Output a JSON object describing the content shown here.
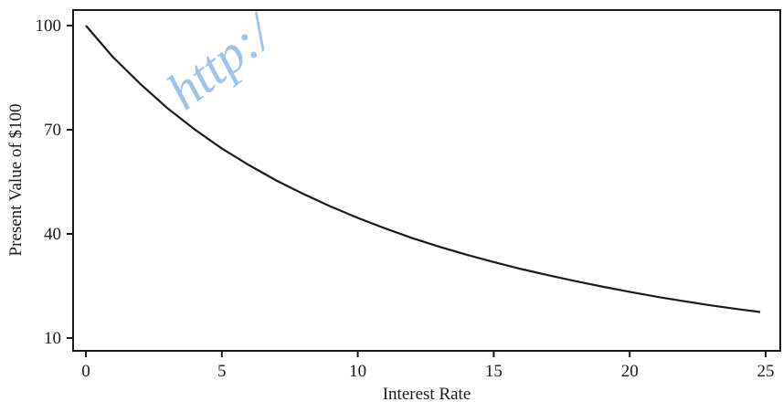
{
  "chart_data": {
    "type": "line",
    "xlabel": "Interest Rate",
    "ylabel": "Present Value of $100",
    "xlim": [
      0,
      25
    ],
    "ylim": [
      10,
      100
    ],
    "x_ticks": [
      0,
      5,
      10,
      15,
      20,
      25
    ],
    "y_ticks": [
      10,
      40,
      70,
      100
    ],
    "grid": false,
    "series": [
      {
        "x": [
          0,
          1,
          2,
          3,
          4,
          5,
          6,
          7,
          8,
          9,
          10,
          11,
          12,
          13,
          14,
          15,
          16,
          17,
          18,
          19,
          20,
          21,
          22,
          23,
          24,
          24.8
        ],
        "y": [
          100,
          90.9,
          83.2,
          76.2,
          70.1,
          64.6,
          59.8,
          55.4,
          51.5,
          47.9,
          44.6,
          41.6,
          38.8,
          36.3,
          34.0,
          31.9,
          29.9,
          28.1,
          26.4,
          24.8,
          23.3,
          21.9,
          20.6,
          19.4,
          18.3,
          17.5
        ]
      }
    ]
  },
  "watermark": {
    "text": "http:/",
    "color": "#9cc3ea"
  },
  "colors": {
    "line": "#1a1a1a",
    "axis": "#1a1a1a"
  }
}
